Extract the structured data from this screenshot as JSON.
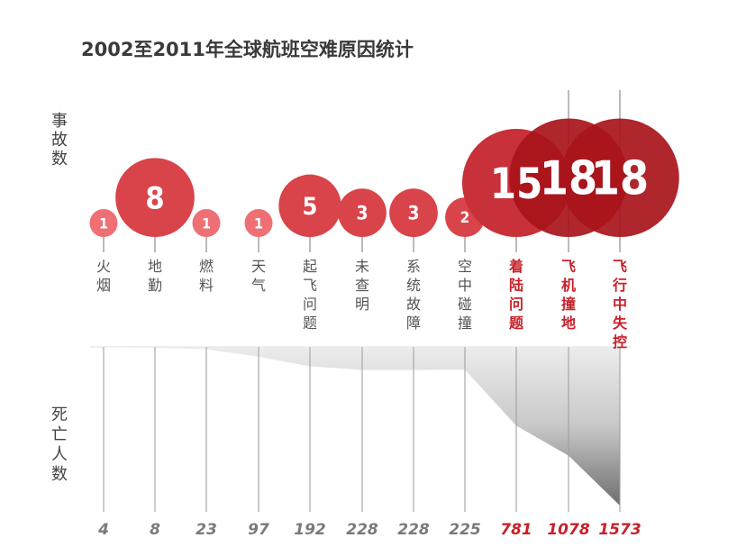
{
  "chart_data": {
    "type": "bubble",
    "title": "2002至2011年全球航班空难原因统计",
    "ylabel_top": "事故数",
    "ylabel_bottom": "死亡人数",
    "categories": [
      "火烟",
      "地勤",
      "燃料",
      "天气",
      "起飞问题",
      "未查明",
      "系统故障",
      "空中碰撞",
      "着陆问题",
      "飞机撞地",
      "飞行中失控"
    ],
    "accidents": [
      1,
      8,
      1,
      1,
      5,
      3,
      3,
      2,
      15,
      18,
      18
    ],
    "deaths": [
      4,
      8,
      23,
      97,
      192,
      228,
      228,
      225,
      781,
      1078,
      1573
    ],
    "highlighted": [
      false,
      false,
      false,
      false,
      false,
      false,
      false,
      false,
      true,
      true,
      true
    ],
    "colors": {
      "bubble_small": "#ee7074",
      "bubble_mid": "#d9434a",
      "bubble_big": "#a8141a",
      "highlight_text": "#c8202a",
      "normal_text": "#555555"
    }
  }
}
